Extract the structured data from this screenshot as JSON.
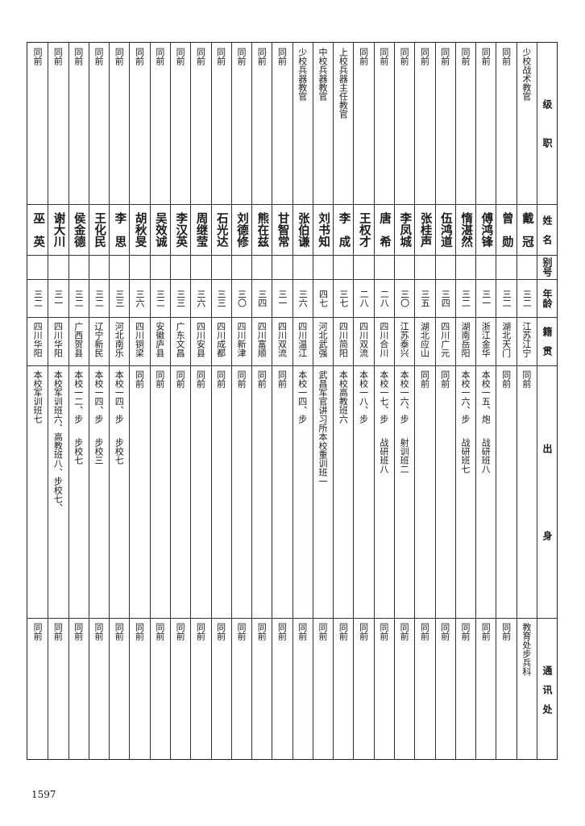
{
  "header": {
    "rank": "级　　　职",
    "name": "姓　名",
    "alias": "别号",
    "age": "年龄",
    "origin": "籍　贯",
    "background": "出　　　　　　　　身",
    "address": "通　讯　处"
  },
  "rows": [
    {
      "rank": "少校战术教官",
      "name": "戴　冠",
      "age": "三二",
      "origin": "江苏江宁",
      "background": [
        "同前"
      ],
      "address": "教育处步兵科"
    },
    {
      "rank": "同前",
      "name": "曾　勋",
      "age": "三二",
      "origin": "湖北天门",
      "background": [
        "同前"
      ],
      "address": "同前"
    },
    {
      "rank": "同前",
      "name": "傅鸿锋",
      "age": "三一",
      "origin": "浙江金华",
      "background": [
        "本校一五、炮",
        "战研班八"
      ],
      "address": "同前"
    },
    {
      "rank": "同前",
      "name": "惰湛然",
      "age": "三二",
      "origin": "湖南岳阳",
      "background": [
        "本校一六、步",
        "战研班七"
      ],
      "address": "同前"
    },
    {
      "rank": "同前",
      "name": "伍鸿道",
      "age": "三四",
      "origin": "四川广元",
      "background": [
        "同前"
      ],
      "address": "同前"
    },
    {
      "rank": "同前",
      "name": "张桂声",
      "age": "三五",
      "origin": "湖北应山",
      "background": [
        "同前"
      ],
      "address": "同前"
    },
    {
      "rank": "同前",
      "name": "李凤城",
      "age": "三〇",
      "origin": "江苏泰兴",
      "background": [
        "本校一六、步",
        "射训班二"
      ],
      "address": "同前"
    },
    {
      "rank": "同前",
      "name": "唐　希",
      "age": "二八",
      "origin": "四川合川",
      "background": [
        "本校一七、步",
        "战研班八"
      ],
      "address": "同前"
    },
    {
      "rank": "同前",
      "name": "王权才",
      "age": "二八",
      "origin": "四川双流",
      "background": [
        "本校一八、步"
      ],
      "address": "同前"
    },
    {
      "rank": "上校兵器主任教官",
      "name": "李　成",
      "age": "三七",
      "origin": "四川简阳",
      "background": [
        "本校高教班六"
      ],
      "address": "同前"
    },
    {
      "rank": "中校兵器教官",
      "name": "刘书知",
      "age": "四七",
      "origin": "河北武强",
      "background": [
        "武昌军官讲习所本校重训班一"
      ],
      "address": "同前"
    },
    {
      "rank": "少校兵器教官",
      "name": "张伯谦",
      "age": "三六",
      "origin": "四川温江",
      "background": [
        "本校一四、步"
      ],
      "address": "同前"
    },
    {
      "rank": "同前",
      "name": "甘智常",
      "age": "三一",
      "origin": "四川双流",
      "background": [
        "同前"
      ],
      "address": "同前"
    },
    {
      "rank": "同前",
      "name": "熊在兹",
      "age": "三四",
      "origin": "四川富顺",
      "background": [
        "同前"
      ],
      "address": "同前"
    },
    {
      "rank": "同前",
      "name": "刘德修",
      "age": "三〇",
      "origin": "四川新津",
      "background": [
        "同前"
      ],
      "address": "同前"
    },
    {
      "rank": "同前",
      "name": "石光达",
      "age": "三三",
      "origin": "四川成都",
      "background": [
        "同前"
      ],
      "address": "同前"
    },
    {
      "rank": "同前",
      "name": "周继莹",
      "age": "三六",
      "origin": "四川安县",
      "background": [
        "同前"
      ],
      "address": "同前"
    },
    {
      "rank": "同前",
      "name": "李汉英",
      "age": "三三",
      "origin": "广东文昌",
      "background": [
        "同前"
      ],
      "address": "同前"
    },
    {
      "rank": "同前",
      "name": "吴效诚",
      "age": "三二",
      "origin": "安徽庐县",
      "background": [
        "同前"
      ],
      "address": "同前"
    },
    {
      "rank": "同前",
      "name": "胡秋旻",
      "age": "三六",
      "origin": "四川铜梁",
      "background": [
        "同前"
      ],
      "address": "同前"
    },
    {
      "rank": "同前",
      "name": "李　思",
      "age": "三三",
      "origin": "河北南乐",
      "background": [
        "本校一四、步",
        "步校七"
      ],
      "address": "同前"
    },
    {
      "rank": "同前",
      "name": "王化民",
      "age": "三二",
      "origin": "辽宁新民",
      "background": [
        "本校一四、步",
        "步校三"
      ],
      "address": "同前"
    },
    {
      "rank": "同前",
      "name": "侯金德",
      "age": "三二",
      "origin": "广西贺县",
      "background": [
        "本校一二、步",
        "步校七"
      ],
      "address": "同前"
    },
    {
      "rank": "同前",
      "name": "谢大川",
      "age": "三一",
      "origin": "四川华阳",
      "background": [
        "本校军训班六、高教班八、步校七、"
      ],
      "address": "同前"
    },
    {
      "rank": "同前",
      "name": "巫　英",
      "age": "三二",
      "origin": "四川华阳",
      "background": [
        "本校军训班七"
      ],
      "address": "同前"
    }
  ],
  "page_number": "1597"
}
